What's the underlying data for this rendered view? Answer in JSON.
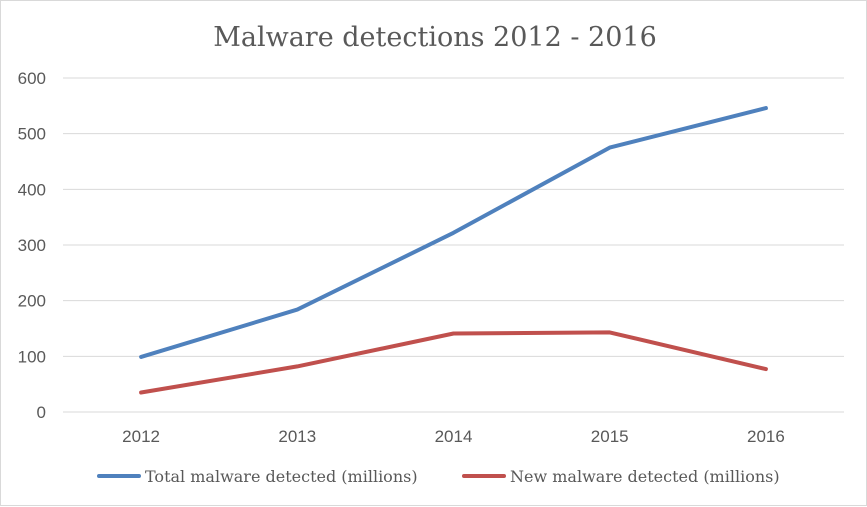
{
  "chart_data": {
    "type": "line",
    "title": "Malware detections 2012 - 2016",
    "xlabel": "",
    "ylabel": "",
    "categories": [
      "2012",
      "2013",
      "2014",
      "2015",
      "2016"
    ],
    "ylim": [
      0,
      600
    ],
    "yticks": [
      "0",
      "100",
      "200",
      "300",
      "400",
      "500",
      "600"
    ],
    "grid": "horizontal",
    "legend": "bottom",
    "series": [
      {
        "name": "Total malware detected (millions)",
        "color": "#4f81bd",
        "values": [
          99,
          184,
          322,
          475,
          546
        ]
      },
      {
        "name": "New malware detected (millions)",
        "color": "#c0504d",
        "values": [
          35,
          82,
          141,
          143,
          77
        ]
      }
    ]
  }
}
